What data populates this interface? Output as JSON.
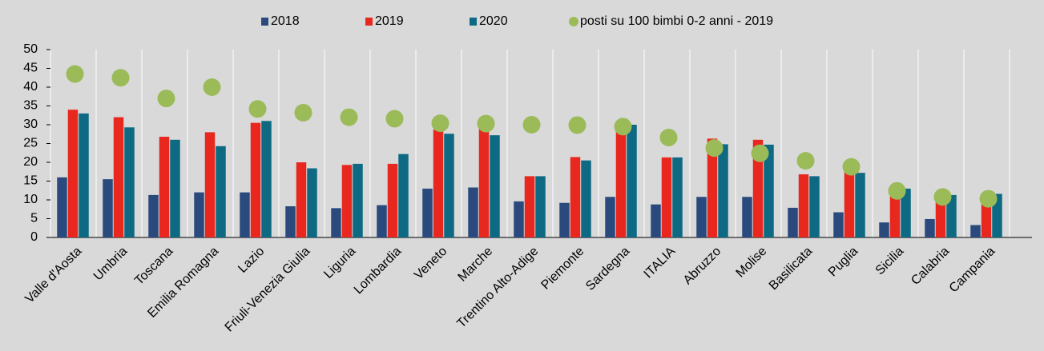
{
  "chart_data": {
    "type": "bar",
    "categories": [
      "Valle d'Aosta",
      "Umbria",
      "Toscana",
      "Emilia Romagna",
      "Lazio",
      "Friuli-Venezia Giulia",
      "Liguria",
      "Lombardia",
      "Veneto",
      "Marche",
      "Trentino Alto-Adige",
      "Piemonte",
      "Sardegna",
      "ITALIA",
      "Abruzzo",
      "Molise",
      "Basilicata",
      "Puglia",
      "Sicilia",
      "Calabria",
      "Campania"
    ],
    "series": [
      {
        "name": "2018",
        "color": "#2a4a7d",
        "values": [
          16,
          15.5,
          11.3,
          12,
          12,
          8.3,
          7.8,
          8.6,
          13,
          13.3,
          9.6,
          9.2,
          10.8,
          8.8,
          10.8,
          10.8,
          7.9,
          6.7,
          4,
          4.9,
          3.3
        ]
      },
      {
        "name": "2019",
        "color": "#e8281e",
        "values": [
          34,
          32,
          26.8,
          28,
          30.5,
          20,
          19.3,
          19.6,
          28.7,
          30,
          16.3,
          21.4,
          29,
          21.3,
          26.3,
          26,
          16.8,
          17.8,
          11,
          10.5,
          9.5
        ]
      },
      {
        "name": "2020",
        "color": "#0e6a83",
        "values": [
          33,
          29.3,
          26,
          24.3,
          31,
          18.4,
          19.6,
          22.2,
          27.6,
          27.2,
          16.3,
          20.5,
          30,
          21.3,
          24.8,
          24.7,
          16.3,
          17.2,
          13,
          11.3,
          11.6
        ]
      },
      {
        "name": "posti su 100 bimbi 0-2 anni - 2019",
        "type": "scatter",
        "color": "#9bbb59",
        "values": [
          43.5,
          42.5,
          37,
          40,
          34.2,
          33.2,
          32,
          31.6,
          30.4,
          30.3,
          30,
          29.9,
          29.5,
          26.6,
          23.8,
          22.4,
          20.4,
          18.8,
          12.4,
          10.8,
          10.3
        ]
      }
    ],
    "ylim": [
      0,
      50
    ],
    "yticks": [
      0,
      5,
      10,
      15,
      20,
      25,
      30,
      35,
      40,
      45,
      50
    ],
    "legend": "top"
  }
}
